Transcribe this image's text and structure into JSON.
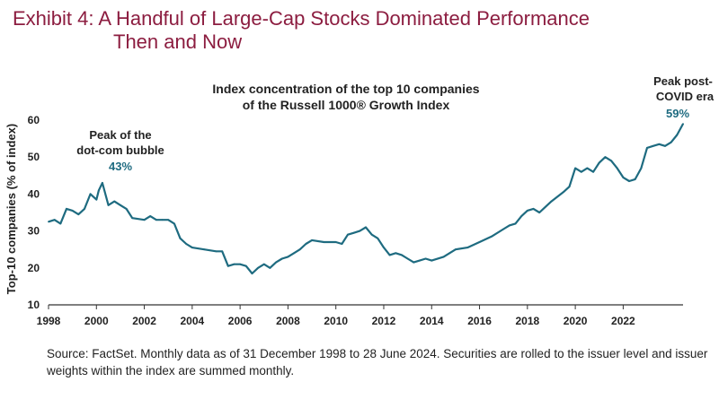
{
  "header": {
    "title_line1": "Exhibit 4: A Handful of Large-Cap Stocks Dominated Performance",
    "title_line2": "Then and Now"
  },
  "chart_data": {
    "type": "line",
    "title_line1": "Index concentration of the top 10 companies",
    "title_line2": "of the Russell 1000® Growth Index",
    "xlabel": "",
    "ylabel": "Top-10 companies (% of index)",
    "ylim": [
      10,
      60
    ],
    "xlim": [
      1998.0,
      2024.5
    ],
    "x_ticks": [
      "1998",
      "2000",
      "2002",
      "2004",
      "2006",
      "2008",
      "2010",
      "2012",
      "2014",
      "2016",
      "2018",
      "2020",
      "2022"
    ],
    "y_ticks": [
      "10",
      "20",
      "30",
      "40",
      "50",
      "60"
    ],
    "grid": false,
    "line_color": "#1e6b80",
    "series": [
      {
        "x": [
          1998.0,
          1998.25,
          1998.5,
          1998.75,
          1999.0,
          1999.25,
          1999.5,
          1999.75,
          2000.0,
          2000.1,
          2000.25,
          2000.5,
          2000.75,
          2001.0,
          2001.25,
          2001.5,
          2002.0,
          2002.25,
          2002.5,
          2002.75,
          2003.0,
          2003.25,
          2003.5,
          2003.75,
          2004.0,
          2004.5,
          2005.0,
          2005.25,
          2005.5,
          2005.75,
          2006.0,
          2006.25,
          2006.5,
          2006.75,
          2007.0,
          2007.25,
          2007.5,
          2007.75,
          2008.0,
          2008.25,
          2008.5,
          2008.75,
          2009.0,
          2009.5,
          2010.0,
          2010.25,
          2010.5,
          2010.75,
          2011.0,
          2011.25,
          2011.5,
          2011.75,
          2012.0,
          2012.25,
          2012.5,
          2012.75,
          2013.0,
          2013.25,
          2013.5,
          2013.75,
          2014.0,
          2014.5,
          2015.0,
          2015.5,
          2016.0,
          2016.5,
          2017.0,
          2017.25,
          2017.5,
          2017.75,
          2018.0,
          2018.25,
          2018.5,
          2018.75,
          2019.0,
          2019.5,
          2019.75,
          2020.0,
          2020.25,
          2020.5,
          2020.75,
          2021.0,
          2021.25,
          2021.5,
          2021.75,
          2022.0,
          2022.25,
          2022.5,
          2022.75,
          2023.0,
          2023.25,
          2023.5,
          2023.75,
          2024.0,
          2024.25,
          2024.5
        ],
        "values": [
          32.5,
          33,
          32,
          36,
          35.5,
          34.5,
          36,
          40,
          38.5,
          41,
          43,
          37,
          38,
          37,
          36,
          33.5,
          33,
          34,
          33,
          33,
          33,
          32,
          28,
          26.5,
          25.5,
          25,
          24.5,
          24.5,
          20.5,
          21,
          21,
          20.5,
          18.5,
          20,
          21,
          20,
          21.5,
          22.5,
          23,
          24,
          25,
          26.5,
          27.5,
          27,
          27,
          26.5,
          29,
          29.5,
          30,
          31,
          29,
          28,
          25.5,
          23.5,
          24,
          23.5,
          22.5,
          21.5,
          22,
          22.5,
          22,
          23,
          25,
          25.5,
          27,
          28.5,
          30.5,
          31.5,
          32,
          34,
          35.5,
          36,
          35,
          36.5,
          38,
          40.5,
          42,
          47,
          46,
          47,
          46,
          48.5,
          50,
          49,
          47,
          44.5,
          43.5,
          44,
          47,
          52.5,
          53,
          53.5,
          53,
          54,
          56,
          59
        ]
      }
    ],
    "annotations": [
      {
        "line1": "Peak of the",
        "line2": "dot-com bubble",
        "value": "43%"
      },
      {
        "line1": "Peak post-",
        "line2": "COVID era",
        "value": "59%"
      }
    ]
  },
  "footer": {
    "source": "Source: FactSet. Monthly data as of 31 December 1998 to 28 June 2024. Securities are rolled to the issuer level and issuer weights within the index are summed monthly."
  }
}
